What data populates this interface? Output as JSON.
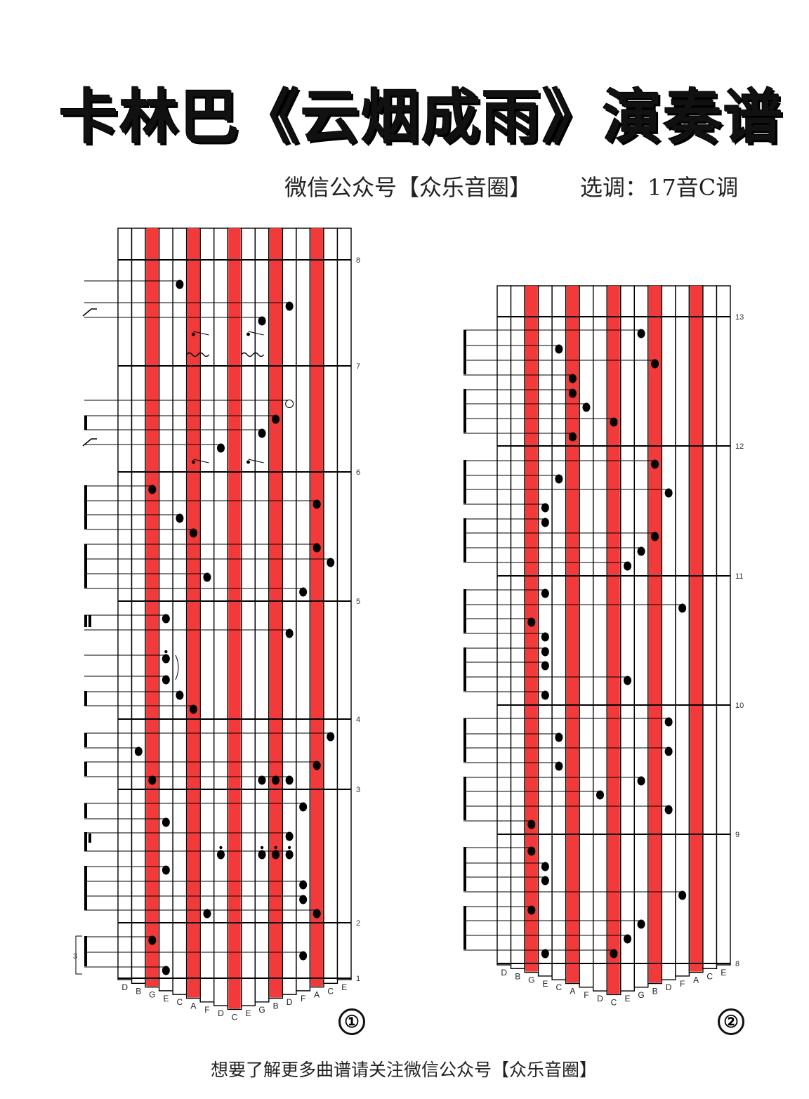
{
  "header": {
    "title": "卡林巴《云烟成雨》演奏谱",
    "source": "微信公众号【众乐音圈】",
    "key": "选调：17音C调"
  },
  "tines": [
    "D",
    "B",
    "G",
    "E",
    "C",
    "A",
    "F",
    "D",
    "C",
    "E",
    "G",
    "B",
    "D",
    "F",
    "A",
    "C",
    "E"
  ],
  "red_tines": [
    2,
    5,
    8,
    11,
    14
  ],
  "colors": {
    "tine_red": "#f23a3a",
    "ink": "#000000"
  },
  "panels": [
    {
      "number": "①",
      "measures": [
        "8",
        "7",
        "6",
        "5",
        "4",
        "3",
        "2",
        "1"
      ]
    },
    {
      "number": "②",
      "measures": [
        "13",
        "12",
        "11",
        "10",
        "9",
        "8"
      ]
    }
  ],
  "footer": {
    "text": "想要了解更多曲谱请关注微信公众号【众乐音圈】"
  }
}
